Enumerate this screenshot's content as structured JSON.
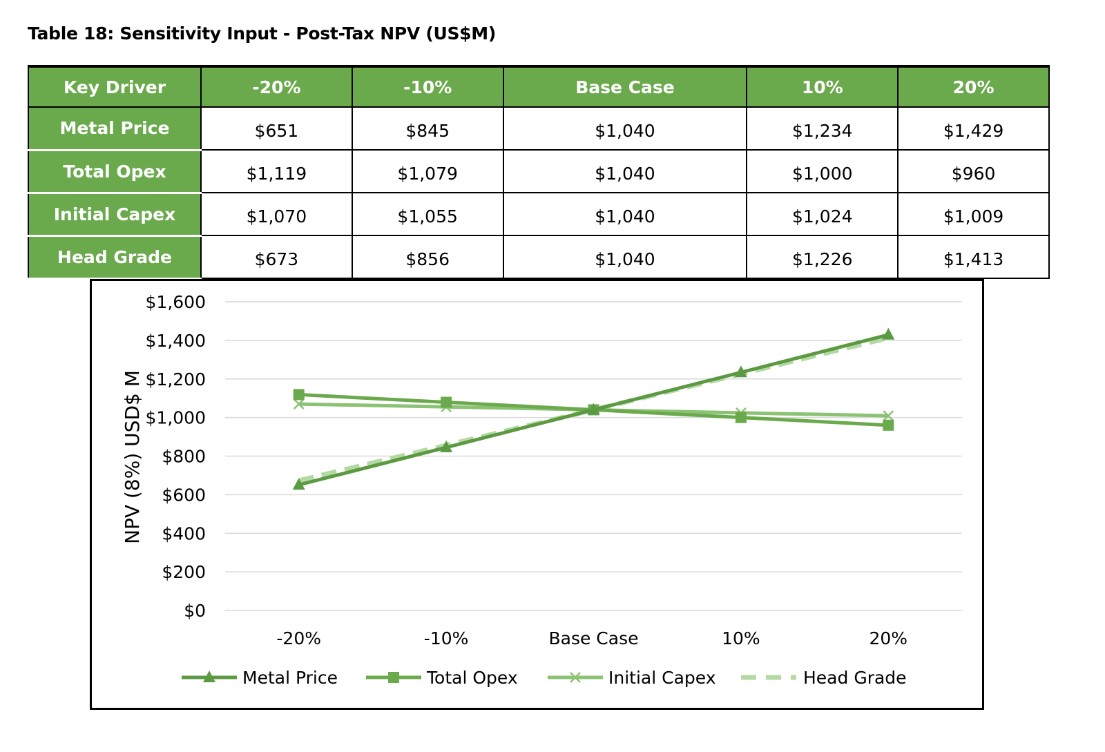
{
  "title": "Table 18: Sensitivity Input - Post-Tax NPV (US$M)",
  "table": {
    "headers": [
      "Key Driver",
      "-20%",
      "-10%",
      "Base Case",
      "10%",
      "20%"
    ],
    "rows": [
      {
        "driver": "Metal Price",
        "cells": [
          "$651",
          "$845",
          "$1,040",
          "$1,234",
          "$1,429"
        ]
      },
      {
        "driver": "Total Opex",
        "cells": [
          "$1,119",
          "$1,079",
          "$1,040",
          "$1,000",
          "$960"
        ]
      },
      {
        "driver": "Initial Capex",
        "cells": [
          "$1,070",
          "$1,055",
          "$1,040",
          "$1,024",
          "$1,009"
        ]
      },
      {
        "driver": "Head Grade",
        "cells": [
          "$673",
          "$856",
          "$1,040",
          "$1,226",
          "$1,413"
        ]
      }
    ]
  },
  "chart_data": {
    "type": "line",
    "categories": [
      "-20%",
      "-10%",
      "Base Case",
      "10%",
      "20%"
    ],
    "ylabel": "NPV (8%) USD$ M",
    "xlabel": "",
    "ylim": [
      0,
      1600
    ],
    "yticks": [
      "$0",
      "$200",
      "$400",
      "$600",
      "$800",
      "$1,000",
      "$1,200",
      "$1,400",
      "$1,600"
    ],
    "ytick_values": [
      0,
      200,
      400,
      600,
      800,
      1000,
      1200,
      1400,
      1600
    ],
    "grid": true,
    "legend_position": "bottom",
    "series": [
      {
        "name": "Metal Price",
        "values": [
          651,
          845,
          1040,
          1234,
          1429
        ],
        "color": "#5b9a42",
        "marker": "triangle",
        "dash": "solid"
      },
      {
        "name": "Total Opex",
        "values": [
          1119,
          1079,
          1040,
          1000,
          960
        ],
        "color": "#6aaa4c",
        "marker": "square",
        "dash": "solid"
      },
      {
        "name": "Initial Capex",
        "values": [
          1070,
          1055,
          1040,
          1024,
          1009
        ],
        "color": "#8cc274",
        "marker": "x",
        "dash": "solid"
      },
      {
        "name": "Head Grade",
        "values": [
          673,
          856,
          1040,
          1226,
          1413
        ],
        "color": "#b5d9a4",
        "marker": "none",
        "dash": "dashed"
      }
    ]
  },
  "colors": {
    "header_green": "#6aaa4c",
    "header_text": "#ffffff",
    "grid": "#d9d9d9"
  }
}
